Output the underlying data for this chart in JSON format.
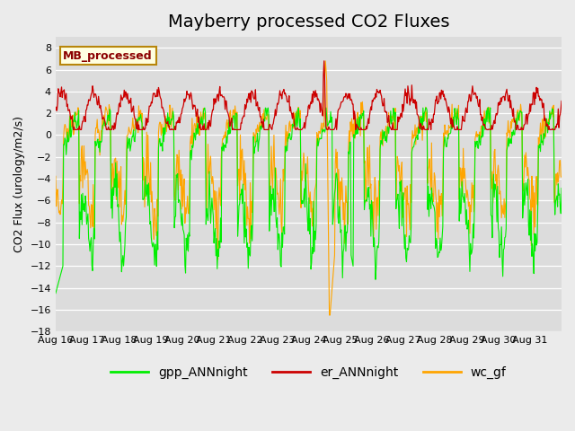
{
  "title": "Mayberry processed CO2 Fluxes",
  "ylabel": "CO2 Flux (urology/m2/s)",
  "ylim": [
    -18,
    9
  ],
  "yticks": [
    -18,
    -16,
    -14,
    -12,
    -10,
    -8,
    -6,
    -4,
    -2,
    0,
    2,
    4,
    6,
    8
  ],
  "x_labels": [
    "Aug 16",
    "Aug 17",
    "Aug 18",
    "Aug 19",
    "Aug 20",
    "Aug 21",
    "Aug 22",
    "Aug 23",
    "Aug 24",
    "Aug 25",
    "Aug 26",
    "Aug 27",
    "Aug 28",
    "Aug 29",
    "Aug 30",
    "Aug 31",
    ""
  ],
  "legend_label": "MB_processed",
  "series_labels": [
    "gpp_ANNnight",
    "er_ANNnight",
    "wc_gf"
  ],
  "colors": [
    "#00EE00",
    "#CC0000",
    "#FFA500"
  ],
  "bg_color": "#DCDCDC",
  "fig_color": "#EBEBEB",
  "title_fontsize": 14,
  "n_days": 16,
  "ppd": 48
}
